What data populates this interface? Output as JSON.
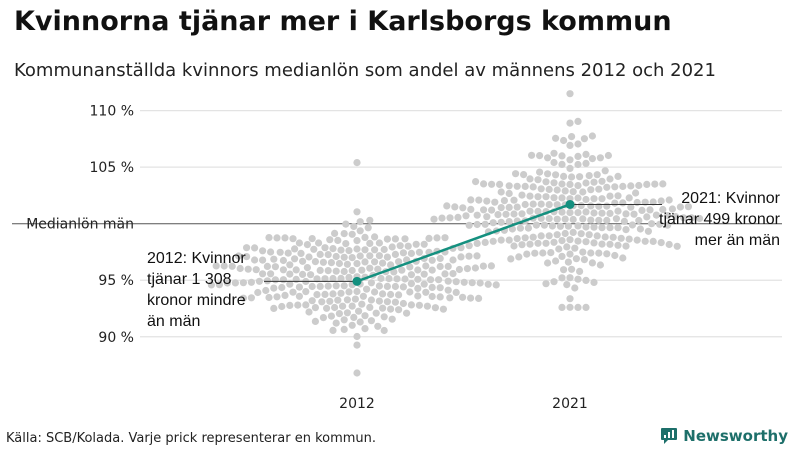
{
  "title": "Kvinnorna tjänar mer i Karlsborgs kommun",
  "subtitle": "Kommunanställda kvinnors medianlön som andel av männens 2012 och 2021",
  "source": "Källa: SCB/Kolada. Varje prick representerar en kommun.",
  "brand": {
    "name": "Newsworthy",
    "icon": "newsworthy-logo-icon",
    "color": "#1d6f6a"
  },
  "chart_data": {
    "type": "scatter",
    "subtype": "beeswarm",
    "categories": [
      "2012",
      "2021"
    ],
    "y_ticks": [
      {
        "value": 90,
        "label": "90 %"
      },
      {
        "value": 95,
        "label": "95 %"
      },
      {
        "value": 100,
        "label": "Medianlön män"
      },
      {
        "value": 105,
        "label": "105 %"
      },
      {
        "value": 110,
        "label": "110 %"
      }
    ],
    "ylim": [
      86,
      112
    ],
    "reference_line": 100,
    "grid": true,
    "colors": {
      "dots": "#cccccc",
      "highlight": "#14907f",
      "grid": "#e3e3e3",
      "reference": "#555555"
    },
    "distributions": [
      {
        "category": "2012",
        "center": 95.3,
        "spread": 2.3,
        "min": 86.8,
        "max": 105.4,
        "count": 290
      },
      {
        "category": "2021",
        "center": 101.0,
        "spread": 2.9,
        "min": 92.6,
        "max": 111.5,
        "count": 290
      }
    ],
    "highlight_series": {
      "values": [
        {
          "category": "2012",
          "y": 94.9
        },
        {
          "category": "2021",
          "y": 101.7
        }
      ]
    },
    "annotations": [
      {
        "category": "2012",
        "lines": [
          "2012: Kvinnor",
          "tjänar 1 308",
          "kronor mindre",
          "än män"
        ]
      },
      {
        "category": "2021",
        "lines": [
          "2021: Kvinnor",
          "tjänar 499 kronor",
          "mer än män"
        ]
      }
    ]
  }
}
